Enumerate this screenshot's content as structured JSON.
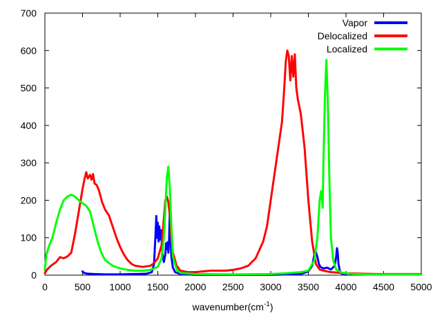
{
  "chart_data": {
    "type": "line",
    "title": "",
    "xlabel": "wavenumber(cm",
    "xlabel_superscript": "-1",
    "xlabel_suffix": ")",
    "ylabel": "",
    "xlim": [
      0,
      5000
    ],
    "ylim": [
      0,
      700
    ],
    "grid": false,
    "legend_position": "top-right",
    "x_ticks": [
      0,
      500,
      1000,
      1500,
      2000,
      2500,
      3000,
      3500,
      4000,
      4500,
      5000
    ],
    "y_ticks": [
      0,
      100,
      200,
      300,
      400,
      500,
      600,
      700
    ],
    "series": [
      {
        "name": "Vapor",
        "color": "#0000ff",
        "points": [
          [
            500,
            10
          ],
          [
            520,
            6
          ],
          [
            560,
            4
          ],
          [
            650,
            3
          ],
          [
            800,
            2
          ],
          [
            1000,
            2
          ],
          [
            1200,
            3
          ],
          [
            1350,
            4
          ],
          [
            1420,
            8
          ],
          [
            1450,
            30
          ],
          [
            1470,
            110
          ],
          [
            1480,
            158
          ],
          [
            1490,
            100
          ],
          [
            1500,
            140
          ],
          [
            1510,
            90
          ],
          [
            1520,
            130
          ],
          [
            1530,
            95
          ],
          [
            1545,
            120
          ],
          [
            1560,
            60
          ],
          [
            1580,
            35
          ],
          [
            1600,
            55
          ],
          [
            1610,
            85
          ],
          [
            1620,
            70
          ],
          [
            1630,
            88
          ],
          [
            1640,
            60
          ],
          [
            1650,
            95
          ],
          [
            1660,
            175
          ],
          [
            1670,
            100
          ],
          [
            1680,
            50
          ],
          [
            1700,
            20
          ],
          [
            1730,
            8
          ],
          [
            1800,
            3
          ],
          [
            2000,
            1
          ],
          [
            2500,
            1
          ],
          [
            3000,
            1
          ],
          [
            3400,
            3
          ],
          [
            3500,
            10
          ],
          [
            3550,
            25
          ],
          [
            3580,
            55
          ],
          [
            3600,
            62
          ],
          [
            3620,
            48
          ],
          [
            3640,
            30
          ],
          [
            3660,
            22
          ],
          [
            3700,
            18
          ],
          [
            3750,
            20
          ],
          [
            3800,
            15
          ],
          [
            3850,
            25
          ],
          [
            3870,
            50
          ],
          [
            3880,
            72
          ],
          [
            3890,
            60
          ],
          [
            3900,
            30
          ],
          [
            3920,
            10
          ],
          [
            3950,
            3
          ],
          [
            4000,
            1
          ]
        ]
      },
      {
        "name": "Delocalized",
        "color": "#ff0000",
        "points": [
          [
            0,
            5
          ],
          [
            30,
            15
          ],
          [
            80,
            25
          ],
          [
            150,
            35
          ],
          [
            200,
            48
          ],
          [
            250,
            45
          ],
          [
            300,
            50
          ],
          [
            350,
            60
          ],
          [
            400,
            110
          ],
          [
            450,
            170
          ],
          [
            500,
            230
          ],
          [
            530,
            260
          ],
          [
            550,
            275
          ],
          [
            570,
            258
          ],
          [
            600,
            268
          ],
          [
            620,
            255
          ],
          [
            640,
            270
          ],
          [
            660,
            245
          ],
          [
            690,
            240
          ],
          [
            720,
            225
          ],
          [
            760,
            195
          ],
          [
            800,
            175
          ],
          [
            850,
            160
          ],
          [
            900,
            130
          ],
          [
            950,
            100
          ],
          [
            1000,
            75
          ],
          [
            1050,
            55
          ],
          [
            1100,
            40
          ],
          [
            1150,
            30
          ],
          [
            1200,
            25
          ],
          [
            1300,
            22
          ],
          [
            1400,
            25
          ],
          [
            1450,
            32
          ],
          [
            1500,
            45
          ],
          [
            1550,
            80
          ],
          [
            1580,
            150
          ],
          [
            1600,
            200
          ],
          [
            1620,
            210
          ],
          [
            1640,
            195
          ],
          [
            1660,
            160
          ],
          [
            1680,
            100
          ],
          [
            1700,
            60
          ],
          [
            1750,
            25
          ],
          [
            1800,
            12
          ],
          [
            1900,
            8
          ],
          [
            2000,
            8
          ],
          [
            2200,
            12
          ],
          [
            2400,
            12
          ],
          [
            2500,
            14
          ],
          [
            2600,
            18
          ],
          [
            2700,
            25
          ],
          [
            2800,
            45
          ],
          [
            2900,
            90
          ],
          [
            2950,
            130
          ],
          [
            3000,
            200
          ],
          [
            3050,
            270
          ],
          [
            3100,
            340
          ],
          [
            3150,
            410
          ],
          [
            3180,
            500
          ],
          [
            3200,
            570
          ],
          [
            3220,
            600
          ],
          [
            3240,
            585
          ],
          [
            3260,
            520
          ],
          [
            3280,
            585
          ],
          [
            3300,
            530
          ],
          [
            3320,
            590
          ],
          [
            3340,
            500
          ],
          [
            3360,
            470
          ],
          [
            3400,
            430
          ],
          [
            3450,
            340
          ],
          [
            3500,
            200
          ],
          [
            3550,
            90
          ],
          [
            3600,
            30
          ],
          [
            3650,
            15
          ],
          [
            3700,
            12
          ],
          [
            3800,
            8
          ],
          [
            4000,
            5
          ],
          [
            4200,
            4
          ],
          [
            4400,
            3
          ],
          [
            4600,
            3
          ],
          [
            4800,
            3
          ],
          [
            5000,
            3
          ]
        ]
      },
      {
        "name": "Localized",
        "color": "#00ff00",
        "points": [
          [
            0,
            15
          ],
          [
            20,
            55
          ],
          [
            50,
            75
          ],
          [
            100,
            100
          ],
          [
            150,
            140
          ],
          [
            200,
            175
          ],
          [
            250,
            200
          ],
          [
            300,
            210
          ],
          [
            350,
            215
          ],
          [
            400,
            210
          ],
          [
            450,
            200
          ],
          [
            500,
            192
          ],
          [
            550,
            185
          ],
          [
            600,
            170
          ],
          [
            650,
            130
          ],
          [
            700,
            90
          ],
          [
            750,
            60
          ],
          [
            800,
            40
          ],
          [
            900,
            25
          ],
          [
            1000,
            18
          ],
          [
            1100,
            14
          ],
          [
            1200,
            12
          ],
          [
            1300,
            12
          ],
          [
            1400,
            14
          ],
          [
            1500,
            22
          ],
          [
            1550,
            45
          ],
          [
            1580,
            100
          ],
          [
            1600,
            180
          ],
          [
            1620,
            260
          ],
          [
            1640,
            290
          ],
          [
            1660,
            230
          ],
          [
            1680,
            130
          ],
          [
            1700,
            50
          ],
          [
            1750,
            15
          ],
          [
            1800,
            6
          ],
          [
            2000,
            3
          ],
          [
            2500,
            2
          ],
          [
            3000,
            3
          ],
          [
            3200,
            5
          ],
          [
            3400,
            8
          ],
          [
            3500,
            12
          ],
          [
            3580,
            40
          ],
          [
            3620,
            100
          ],
          [
            3650,
            200
          ],
          [
            3670,
            225
          ],
          [
            3690,
            180
          ],
          [
            3700,
            300
          ],
          [
            3720,
            480
          ],
          [
            3740,
            575
          ],
          [
            3760,
            450
          ],
          [
            3780,
            250
          ],
          [
            3800,
            100
          ],
          [
            3830,
            40
          ],
          [
            3870,
            15
          ],
          [
            3950,
            6
          ],
          [
            4100,
            3
          ],
          [
            4300,
            2
          ],
          [
            4600,
            2
          ],
          [
            4800,
            2
          ],
          [
            5000,
            2
          ]
        ]
      }
    ]
  }
}
